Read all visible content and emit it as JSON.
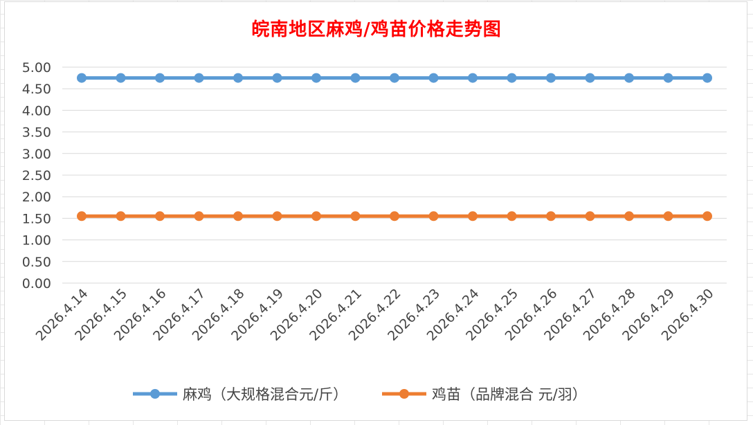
{
  "chart_data": {
    "type": "line",
    "title": "皖南地区麻鸡/鸡苗价格走势图",
    "x": [
      "2026.4.14",
      "2026.4.15",
      "2026.4.16",
      "2026.4.17",
      "2026.4.18",
      "2026.4.19",
      "2026.4.20",
      "2026.4.21",
      "2026.4.22",
      "2026.4.23",
      "2026.4.24",
      "2026.4.25",
      "2026.4.26",
      "2026.4.27",
      "2026.4.28",
      "2026.4.29",
      "2026.4.30"
    ],
    "yticks": [
      "0.00",
      "0.50",
      "1.00",
      "1.50",
      "2.00",
      "2.50",
      "3.00",
      "3.50",
      "4.00",
      "4.50",
      "5.00"
    ],
    "ylim": [
      0,
      5
    ],
    "grid": true,
    "legend_position": "bottom",
    "series": [
      {
        "name": "麻鸡（大规格混合元/斤）",
        "color": "#5b9bd5",
        "values": [
          4.75,
          4.75,
          4.75,
          4.75,
          4.75,
          4.75,
          4.75,
          4.75,
          4.75,
          4.75,
          4.75,
          4.75,
          4.75,
          4.75,
          4.75,
          4.75,
          4.75
        ]
      },
      {
        "name": "鸡苗（品牌混合 元/羽）",
        "color": "#ed7d31",
        "values": [
          1.55,
          1.55,
          1.55,
          1.55,
          1.55,
          1.55,
          1.55,
          1.55,
          1.55,
          1.55,
          1.55,
          1.55,
          1.55,
          1.55,
          1.55,
          1.55,
          1.55
        ]
      }
    ]
  }
}
